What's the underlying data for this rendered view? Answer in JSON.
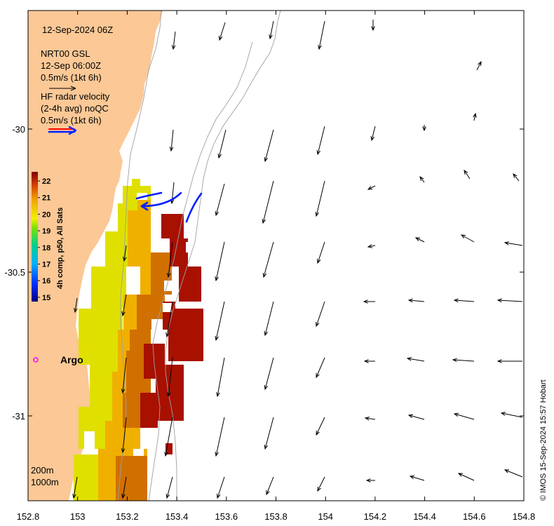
{
  "title": "12-Sep-2024 06Z",
  "legend": {
    "model": {
      "name": "NRT00 GSL",
      "time": "12-Sep 06:00Z",
      "scale": "0.5m/s (1kt 6h)"
    },
    "radar": {
      "line1": "HF radar velocity",
      "line2": "(2-4h avg) noQC",
      "scale": "0.5m/s (1kt 6h)"
    }
  },
  "colorbar": {
    "label": "4h comp, p50, All Sats",
    "ticks": [
      "22",
      "21",
      "20",
      "19",
      "18",
      "17",
      "16",
      "15"
    ]
  },
  "marker": {
    "label": "Argo",
    "color": "#ff00ff"
  },
  "contours": {
    "shallow": "200m",
    "deep": "1000m"
  },
  "axes": {
    "x_ticks": [
      "152.8",
      "153",
      "153.2",
      "153.4",
      "153.6",
      "153.8",
      "154",
      "154.2",
      "154.4",
      "154.6",
      "154.8"
    ],
    "y_ticks": [
      "-30",
      "-30.5",
      "-31"
    ]
  },
  "credit": "© IMOS 15-Sep-2024 15:57 Hobart",
  "colors": {
    "land": "#fbc896",
    "hot": "#a81000",
    "warm": "#d07000",
    "mid": "#f0b000",
    "cool": "#e0e000",
    "radar_arrow": "#0020ff",
    "model_arrow": "#000000"
  }
}
